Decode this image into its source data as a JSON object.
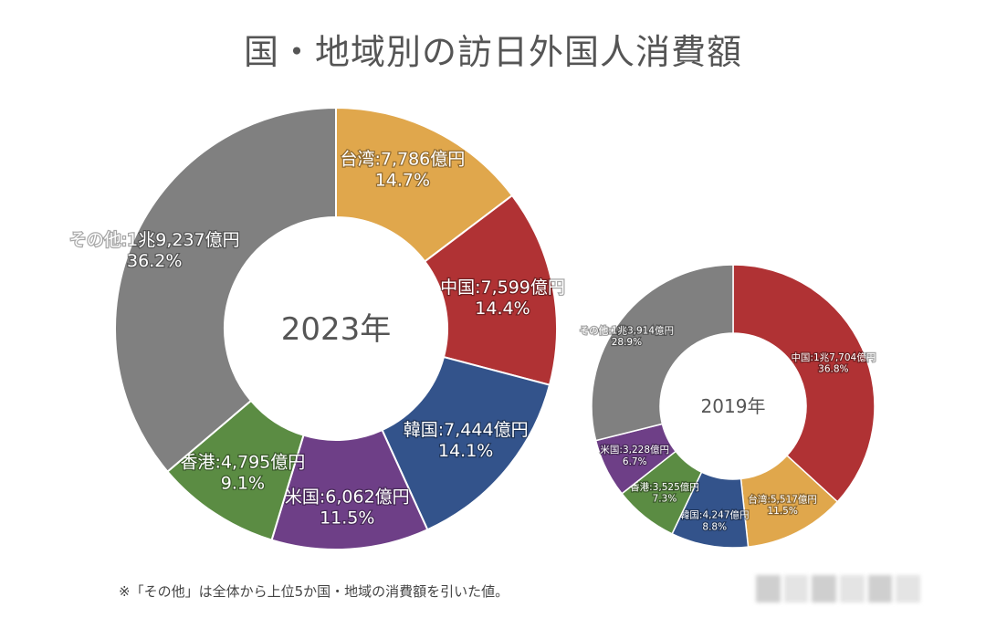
{
  "title": "国・地域別の訪日外国人消費額",
  "footnote": "※「その他」は全体から上位5か国・地域の消費額を引いた値。",
  "chart_data": [
    {
      "type": "pie",
      "variant": "donut",
      "center_label": "2023年",
      "slices": [
        {
          "name": "台湾",
          "amount": "7,786億円",
          "percent": 14.7,
          "color": "#e0a74c"
        },
        {
          "name": "中国",
          "amount": "7,599億円",
          "percent": 14.4,
          "color": "#b03234"
        },
        {
          "name": "韓国",
          "amount": "7,444億円",
          "percent": 14.1,
          "color": "#33538b"
        },
        {
          "name": "米国",
          "amount": "6,062億円",
          "percent": 11.5,
          "color": "#6e3f87"
        },
        {
          "name": "香港",
          "amount": "4,795億円",
          "percent": 9.1,
          "color": "#5b8c43"
        },
        {
          "name": "その他",
          "amount": "1兆9,237億円",
          "percent": 36.2,
          "color": "#808080"
        }
      ]
    },
    {
      "type": "pie",
      "variant": "donut",
      "center_label": "2019年",
      "slices": [
        {
          "name": "中国",
          "amount": "1兆7,704億円",
          "percent": 36.8,
          "color": "#b03234"
        },
        {
          "name": "台湾",
          "amount": "5,517億円",
          "percent": 11.5,
          "color": "#e0a74c"
        },
        {
          "name": "韓国",
          "amount": "4,247億円",
          "percent": 8.8,
          "color": "#33538b"
        },
        {
          "name": "香港",
          "amount": "3,525億円",
          "percent": 7.3,
          "color": "#5b8c43"
        },
        {
          "name": "米国",
          "amount": "3,228億円",
          "percent": 6.7,
          "color": "#6e3f87"
        },
        {
          "name": "その他",
          "amount": "1兆3,914億円",
          "percent": 28.9,
          "color": "#808080"
        }
      ]
    }
  ]
}
